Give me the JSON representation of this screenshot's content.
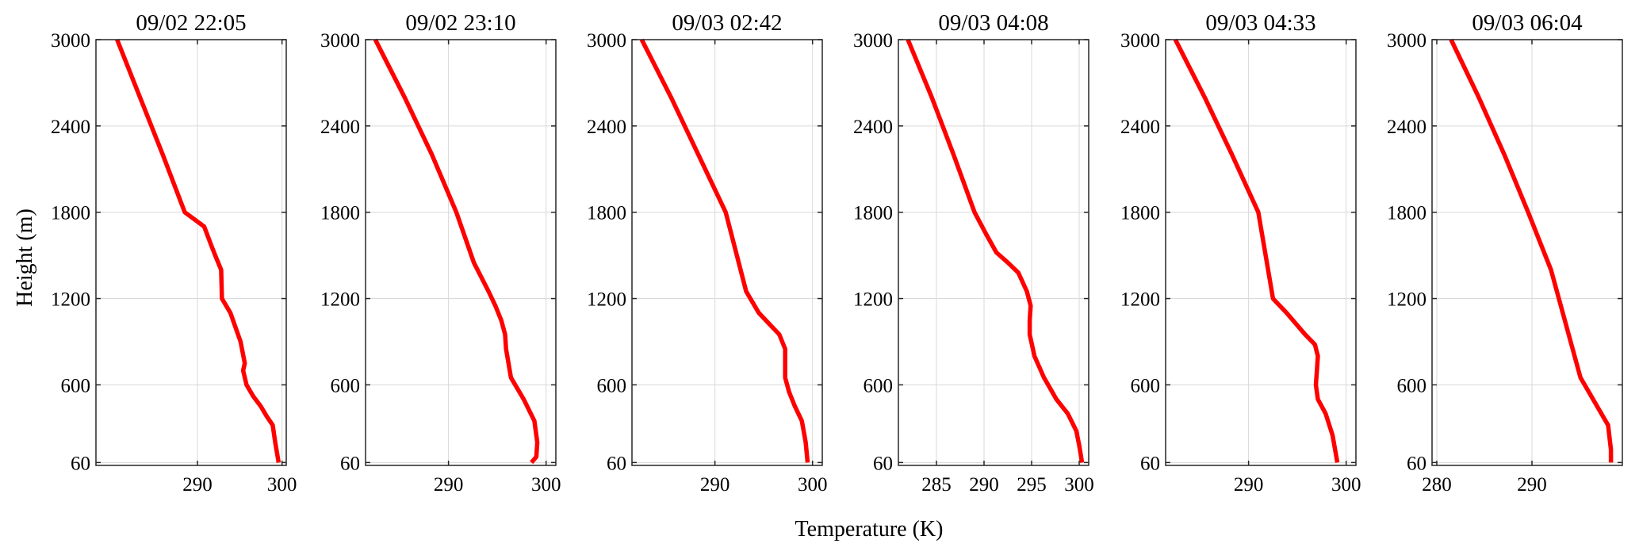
{
  "figure": {
    "ylabel": "Height (m)",
    "xlabel": "Temperature (K)"
  },
  "colors": {
    "line": "#ff0000",
    "grid": "#d9d9d9",
    "axis": "#262626"
  },
  "chart_data": [
    {
      "type": "line",
      "title": "09/02 22:05",
      "grid": true,
      "xlim": [
        278,
        300.5
      ],
      "ylim": [
        40,
        3000
      ],
      "xticks": [
        290,
        300
      ],
      "yticks": [
        60,
        600,
        1200,
        1800,
        2400,
        3000
      ],
      "series": [
        {
          "x": [
            280.5,
            283.2,
            285.9,
            288.5,
            290.8,
            291.7,
            292.1,
            292.8,
            292.9,
            293.9,
            294.5,
            295.1,
            295.6,
            295.4,
            295.8,
            296.6,
            297.5,
            298.2,
            298.9,
            299.2,
            299.6
          ],
          "y": [
            3000,
            2600,
            2200,
            1800,
            1700,
            1560,
            1500,
            1400,
            1200,
            1100,
            1000,
            900,
            750,
            700,
            600,
            520,
            450,
            380,
            320,
            200,
            60
          ]
        }
      ]
    },
    {
      "type": "line",
      "title": "09/02 23:10",
      "grid": true,
      "xlim": [
        281.5,
        301
      ],
      "ylim": [
        40,
        3000
      ],
      "xticks": [
        290,
        300
      ],
      "yticks": [
        60,
        600,
        1200,
        1800,
        2400,
        3000
      ],
      "series": [
        {
          "x": [
            282.5,
            285.5,
            288.3,
            290.8,
            292.6,
            294.1,
            294.8,
            295.4,
            295.8,
            295.9,
            296.4,
            297.7,
            298.8,
            299.1,
            299.0,
            298.5
          ],
          "y": [
            3000,
            2600,
            2200,
            1800,
            1450,
            1250,
            1150,
            1050,
            950,
            850,
            650,
            500,
            350,
            200,
            100,
            60
          ]
        }
      ]
    },
    {
      "type": "line",
      "title": "09/03 02:42",
      "grid": true,
      "xlim": [
        281.5,
        301
      ],
      "ylim": [
        40,
        3000
      ],
      "xticks": [
        290,
        300
      ],
      "yticks": [
        60,
        600,
        1200,
        1800,
        2400,
        3000
      ],
      "series": [
        {
          "x": [
            282.5,
            285.5,
            288.3,
            291.1,
            293.2,
            294.5,
            296.6,
            297.2,
            297.2,
            297.6,
            298.2,
            298.9,
            299.3,
            299.5
          ],
          "y": [
            3000,
            2600,
            2200,
            1800,
            1250,
            1100,
            950,
            850,
            650,
            550,
            450,
            350,
            200,
            60
          ]
        }
      ]
    },
    {
      "type": "line",
      "title": "09/03 04:08",
      "grid": true,
      "xlim": [
        281,
        301
      ],
      "ylim": [
        40,
        3000
      ],
      "xticks": [
        285,
        290,
        295,
        300
      ],
      "yticks": [
        60,
        600,
        1200,
        1800,
        2400,
        3000
      ],
      "series": [
        {
          "x": [
            282.0,
            284.5,
            286.8,
            289.0,
            290.2,
            291.3,
            292.5,
            293.6,
            294.5,
            294.9,
            294.8,
            294.8,
            295.3,
            296.3,
            297.6,
            298.8,
            299.7,
            300.0,
            300.3
          ],
          "y": [
            3000,
            2600,
            2200,
            1800,
            1650,
            1520,
            1450,
            1380,
            1250,
            1150,
            1050,
            950,
            800,
            650,
            500,
            400,
            280,
            180,
            60
          ]
        }
      ]
    },
    {
      "type": "line",
      "title": "09/03 04:33",
      "grid": true,
      "xlim": [
        281.5,
        301
      ],
      "ylim": [
        40,
        3000
      ],
      "xticks": [
        290,
        300
      ],
      "yticks": [
        60,
        600,
        1200,
        1800,
        2400,
        3000
      ],
      "series": [
        {
          "x": [
            282.5,
            285.5,
            288.3,
            291.0,
            292.5,
            293.9,
            295.8,
            296.8,
            297.1,
            297.0,
            296.9,
            297.1,
            297.9,
            298.6,
            299.1
          ],
          "y": [
            3000,
            2600,
            2200,
            1800,
            1200,
            1100,
            950,
            880,
            800,
            700,
            600,
            500,
            400,
            250,
            60
          ]
        }
      ]
    },
    {
      "type": "line",
      "title": "09/03 06:04",
      "grid": true,
      "xlim": [
        279.5,
        299.5
      ],
      "ylim": [
        40,
        3000
      ],
      "xticks": [
        280,
        290
      ],
      "yticks": [
        60,
        600,
        1200,
        1800,
        2400,
        3000
      ],
      "series": [
        {
          "x": [
            281.5,
            284.4,
            287.1,
            289.6,
            292.0,
            295.1,
            298.0,
            298.3,
            298.3
          ],
          "y": [
            3000,
            2600,
            2200,
            1800,
            1400,
            650,
            320,
            150,
            60
          ]
        }
      ]
    }
  ]
}
